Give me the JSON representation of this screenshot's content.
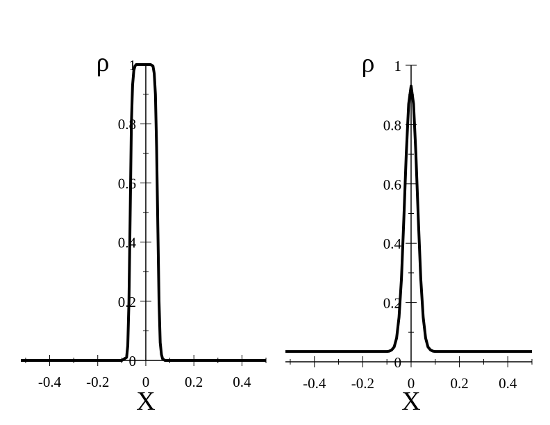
{
  "chart_data": [
    {
      "type": "line",
      "title": "",
      "xlabel": "X",
      "ylabel": "ρ",
      "xlim": [
        -0.52,
        0.5
      ],
      "ylim": [
        0,
        1
      ],
      "x_ticks": [
        -0.4,
        -0.2,
        0,
        0.2,
        0.4
      ],
      "x_tick_labels": [
        "-0.4",
        "-0.2",
        "0",
        "0.2",
        "0.4"
      ],
      "y_ticks": [
        0,
        0.2,
        0.4,
        0.6,
        0.8,
        1
      ],
      "y_tick_labels": [
        "0",
        "0.2",
        "0.4",
        "0.6",
        "0.8",
        "1"
      ],
      "grid": false,
      "series": [
        {
          "x": [
            -0.52,
            -0.1,
            -0.08,
            -0.075,
            -0.07,
            -0.065,
            -0.06,
            -0.055,
            -0.05,
            -0.045,
            -0.04,
            -0.03,
            -0.02,
            0,
            0.02,
            0.03,
            0.035,
            0.04,
            0.045,
            0.05,
            0.055,
            0.06,
            0.065,
            0.07,
            0.08,
            0.1,
            0.5
          ],
          "y": [
            0,
            0,
            0.01,
            0.05,
            0.2,
            0.5,
            0.8,
            0.93,
            0.98,
            0.995,
            1,
            1,
            1,
            1,
            1,
            0.995,
            0.97,
            0.9,
            0.72,
            0.45,
            0.2,
            0.06,
            0.02,
            0.005,
            0,
            0,
            0
          ]
        }
      ]
    },
    {
      "type": "line",
      "title": "",
      "xlabel": "X",
      "ylabel": "ρ",
      "xlim": [
        -0.52,
        0.5
      ],
      "ylim": [
        0,
        1
      ],
      "x_ticks": [
        -0.4,
        -0.2,
        0,
        0.2,
        0.4
      ],
      "x_tick_labels": [
        "-0.4",
        "-0.2",
        "0",
        "0.2",
        "0.4"
      ],
      "y_ticks": [
        0,
        0.2,
        0.4,
        0.6,
        0.8,
        1
      ],
      "y_tick_labels": [
        "0",
        "0.2",
        "0.4",
        "0.6",
        "0.8",
        "1"
      ],
      "grid": false,
      "series": [
        {
          "x": [
            -0.52,
            -0.1,
            -0.09,
            -0.08,
            -0.07,
            -0.06,
            -0.05,
            -0.04,
            -0.03,
            -0.02,
            -0.01,
            0,
            0.01,
            0.02,
            0.03,
            0.04,
            0.05,
            0.06,
            0.07,
            0.08,
            0.09,
            0.1,
            0.5
          ],
          "y": [
            0.035,
            0.035,
            0.036,
            0.04,
            0.05,
            0.08,
            0.15,
            0.28,
            0.48,
            0.7,
            0.87,
            0.93,
            0.87,
            0.7,
            0.48,
            0.28,
            0.15,
            0.08,
            0.05,
            0.04,
            0.036,
            0.035,
            0.035
          ]
        }
      ]
    }
  ]
}
